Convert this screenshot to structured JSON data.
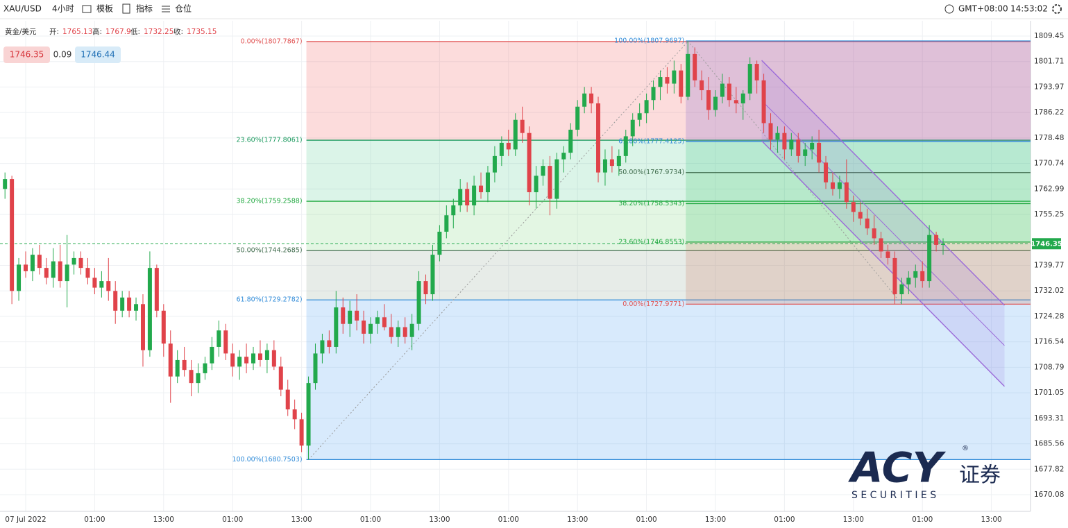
{
  "toolbar": {
    "symbol": "XAU/USD",
    "interval": "4小时",
    "template": "模板",
    "indicators": "指标",
    "positions": "仓位",
    "timezone": "GMT+08:00",
    "clock": "14:53:02"
  },
  "legend": {
    "name": "黄金/美元",
    "open_label": "开:",
    "open": 1765.13,
    "high_label": "高:",
    "high": 1767.9,
    "low_label": "低:",
    "low": 1732.25,
    "close_label": "收:",
    "close": 1735.15
  },
  "quote": {
    "sell": 1746.35,
    "spread": 0.09,
    "buy": 1746.44
  },
  "watermark": {
    "brand": "ACY",
    "mark": "®",
    "cn": "证券",
    "sub": "S E C U R I T I E S"
  },
  "chart_data": {
    "type": "candlestick",
    "categories": [
      null,
      null,
      null,
      "07 Jul 2022",
      null,
      null,
      null,
      null,
      null,
      null,
      null,
      null,
      null,
      "01:00",
      null,
      null,
      null,
      null,
      null,
      null,
      null,
      null,
      null,
      "13:00",
      null,
      null,
      null,
      null,
      null,
      null,
      null,
      null,
      null,
      "01:00",
      null,
      null,
      null,
      null,
      null,
      null,
      null,
      null,
      null,
      "13:00",
      null,
      null,
      null,
      null,
      null,
      null,
      null,
      null,
      null,
      "01:00",
      null,
      null,
      null,
      null,
      null,
      null,
      null,
      null,
      null,
      "13:00",
      null,
      null,
      null,
      null,
      null,
      null,
      null,
      null,
      null,
      "01:00",
      null,
      null,
      null,
      null,
      null,
      null,
      null,
      null,
      null,
      "13:00",
      null,
      null,
      null,
      null,
      null,
      null,
      null,
      null,
      null,
      "01:00",
      null,
      null,
      null,
      null,
      null,
      null,
      null,
      null,
      null,
      "13:00",
      null,
      null,
      null,
      null,
      null,
      null,
      null,
      null,
      null,
      "01:00",
      null,
      null,
      null,
      null,
      null,
      null,
      null,
      null,
      null,
      "13:00",
      null,
      null,
      null,
      null,
      null,
      null,
      null,
      null,
      null,
      "01:00",
      null,
      null,
      null,
      null,
      null,
      null,
      null,
      null,
      null,
      "13:00"
    ],
    "candles": [
      [
        1763,
        1768,
        1760,
        1766
      ],
      [
        1766,
        1767,
        1728,
        1732
      ],
      [
        1732,
        1742,
        1729,
        1740
      ],
      [
        1740,
        1744,
        1736,
        1738
      ],
      [
        1738,
        1745,
        1735,
        1743
      ],
      [
        1743,
        1746,
        1737,
        1739
      ],
      [
        1739,
        1742,
        1734,
        1736
      ],
      [
        1736,
        1745,
        1733,
        1741
      ],
      [
        1741,
        1746,
        1733,
        1735
      ],
      [
        1735,
        1749,
        1727,
        1740
      ],
      [
        1740,
        1744,
        1737,
        1742
      ],
      [
        1742,
        1744,
        1737,
        1739
      ],
      [
        1739,
        1742,
        1734,
        1736
      ],
      [
        1736,
        1739,
        1731,
        1733
      ],
      [
        1733,
        1738,
        1730,
        1735
      ],
      [
        1735,
        1742,
        1729,
        1732
      ],
      [
        1732,
        1735,
        1722,
        1726
      ],
      [
        1726,
        1732,
        1724,
        1730
      ],
      [
        1730,
        1732,
        1724,
        1726
      ],
      [
        1726,
        1730,
        1723,
        1728
      ],
      [
        1728,
        1731,
        1709,
        1714
      ],
      [
        1714,
        1744,
        1712,
        1739
      ],
      [
        1739,
        1740,
        1724,
        1726
      ],
      [
        1726,
        1728,
        1712,
        1716
      ],
      [
        1716,
        1720,
        1698,
        1706
      ],
      [
        1706,
        1714,
        1704,
        1711
      ],
      [
        1711,
        1715,
        1706,
        1708
      ],
      [
        1708,
        1711,
        1700,
        1704
      ],
      [
        1704,
        1710,
        1701,
        1707
      ],
      [
        1707,
        1712,
        1705,
        1710
      ],
      [
        1710,
        1718,
        1708,
        1715
      ],
      [
        1715,
        1723,
        1712,
        1720
      ],
      [
        1720,
        1722,
        1711,
        1713
      ],
      [
        1713,
        1716,
        1706,
        1709
      ],
      [
        1709,
        1714,
        1705,
        1712
      ],
      [
        1712,
        1716,
        1707,
        1710
      ],
      [
        1710,
        1715,
        1708,
        1713
      ],
      [
        1713,
        1717,
        1709,
        1711
      ],
      [
        1711,
        1716,
        1707,
        1714
      ],
      [
        1714,
        1717,
        1708,
        1709
      ],
      [
        1709,
        1712,
        1700,
        1702
      ],
      [
        1702,
        1705,
        1694,
        1696
      ],
      [
        1696,
        1699,
        1690,
        1693
      ],
      [
        1693,
        1695,
        1683,
        1685
      ],
      [
        1685,
        1706,
        1680.75,
        1704
      ],
      [
        1704,
        1716,
        1702,
        1713
      ],
      [
        1713,
        1719,
        1710,
        1717
      ],
      [
        1717,
        1720,
        1713,
        1715
      ],
      [
        1715,
        1732,
        1713,
        1727
      ],
      [
        1727,
        1730,
        1719,
        1722
      ],
      [
        1722,
        1729,
        1718,
        1726
      ],
      [
        1726,
        1731,
        1720,
        1723
      ],
      [
        1723,
        1726,
        1716,
        1719
      ],
      [
        1719,
        1724,
        1716,
        1722
      ],
      [
        1722,
        1726,
        1719,
        1724
      ],
      [
        1724,
        1728,
        1720,
        1721
      ],
      [
        1721,
        1725,
        1716,
        1718
      ],
      [
        1718,
        1723,
        1715,
        1721
      ],
      [
        1721,
        1724,
        1716,
        1718
      ],
      [
        1718,
        1725,
        1714,
        1722
      ],
      [
        1722,
        1738,
        1720,
        1735
      ],
      [
        1735,
        1737,
        1728,
        1731
      ],
      [
        1731,
        1746,
        1729,
        1743
      ],
      [
        1743,
        1752,
        1741,
        1750
      ],
      [
        1750,
        1758,
        1748,
        1755
      ],
      [
        1755,
        1760,
        1751,
        1758
      ],
      [
        1758,
        1766,
        1756,
        1763
      ],
      [
        1763,
        1765,
        1756,
        1758
      ],
      [
        1758,
        1767,
        1755,
        1764
      ],
      [
        1764,
        1768,
        1760,
        1762
      ],
      [
        1762,
        1770,
        1759,
        1768
      ],
      [
        1768,
        1776,
        1765,
        1773
      ],
      [
        1773,
        1779,
        1770,
        1777
      ],
      [
        1777,
        1781,
        1773,
        1775
      ],
      [
        1775,
        1786,
        1773,
        1784
      ],
      [
        1784,
        1788,
        1777,
        1780
      ],
      [
        1780,
        1782,
        1758,
        1762
      ],
      [
        1762,
        1770,
        1757,
        1767
      ],
      [
        1767,
        1772,
        1764,
        1770
      ],
      [
        1770,
        1773,
        1755,
        1760
      ],
      [
        1760,
        1774,
        1757,
        1772
      ],
      [
        1772,
        1776,
        1768,
        1774
      ],
      [
        1774,
        1783,
        1772,
        1781
      ],
      [
        1781,
        1790,
        1779,
        1788
      ],
      [
        1788,
        1794,
        1786,
        1792
      ],
      [
        1792,
        1794,
        1786,
        1789
      ],
      [
        1789,
        1791,
        1765,
        1768
      ],
      [
        1768,
        1775,
        1764,
        1772
      ],
      [
        1772,
        1776,
        1768,
        1770
      ],
      [
        1770,
        1775,
        1767,
        1773
      ],
      [
        1773,
        1781,
        1771,
        1779
      ],
      [
        1779,
        1786,
        1776,
        1784
      ],
      [
        1784,
        1789,
        1782,
        1786
      ],
      [
        1786,
        1792,
        1783,
        1790
      ],
      [
        1790,
        1796,
        1787,
        1794
      ],
      [
        1794,
        1799,
        1790,
        1797
      ],
      [
        1797,
        1800,
        1792,
        1795
      ],
      [
        1795,
        1802,
        1792,
        1799
      ],
      [
        1799,
        1801,
        1789,
        1791
      ],
      [
        1791,
        1807.97,
        1790,
        1804
      ],
      [
        1804,
        1806,
        1794,
        1796
      ],
      [
        1796,
        1799,
        1790,
        1793
      ],
      [
        1793,
        1797,
        1784,
        1787
      ],
      [
        1787,
        1793,
        1785,
        1791
      ],
      [
        1791,
        1798,
        1789,
        1795
      ],
      [
        1795,
        1797,
        1788,
        1790
      ],
      [
        1790,
        1794,
        1786,
        1789
      ],
      [
        1789,
        1793,
        1784,
        1792
      ],
      [
        1792,
        1803,
        1790,
        1801
      ],
      [
        1801,
        1802,
        1792,
        1796
      ],
      [
        1796,
        1798,
        1780,
        1783
      ],
      [
        1783,
        1786,
        1775,
        1778
      ],
      [
        1778,
        1782,
        1774,
        1780
      ],
      [
        1780,
        1782,
        1772,
        1775
      ],
      [
        1775,
        1780,
        1773,
        1778
      ],
      [
        1778,
        1780,
        1771,
        1773
      ],
      [
        1773,
        1777,
        1770,
        1775
      ],
      [
        1775,
        1779,
        1772,
        1777
      ],
      [
        1777,
        1781,
        1768,
        1771
      ],
      [
        1771,
        1773,
        1763,
        1765
      ],
      [
        1765,
        1768,
        1761,
        1763
      ],
      [
        1763,
        1767,
        1760,
        1765
      ],
      [
        1765,
        1772,
        1757,
        1759
      ],
      [
        1759,
        1761,
        1753,
        1756
      ],
      [
        1756,
        1759,
        1752,
        1754
      ],
      [
        1754,
        1757,
        1749,
        1751
      ],
      [
        1751,
        1755,
        1746,
        1748
      ],
      [
        1748,
        1750,
        1742,
        1744
      ],
      [
        1744,
        1746,
        1740,
        1742
      ],
      [
        1742,
        1744,
        1728,
        1731
      ],
      [
        1731,
        1736,
        1727.98,
        1734
      ],
      [
        1734,
        1738,
        1731,
        1736
      ],
      [
        1736,
        1740,
        1733,
        1738
      ],
      [
        1738,
        1741,
        1733,
        1735
      ],
      [
        1735,
        1752,
        1733,
        1749
      ],
      [
        1749,
        1750,
        1744,
        1746
      ],
      [
        1746,
        1748,
        1743,
        1746.35
      ],
      null,
      null,
      null,
      null,
      null,
      null,
      null
    ],
    "up_color": "#22a94c",
    "down_color": "#e0434a",
    "ylim": [
      1665.02,
      1814.09
    ],
    "yticks": [
      1670.08,
      1677.82,
      1685.56,
      1693.31,
      1701.05,
      1708.79,
      1716.54,
      1724.28,
      1732.02,
      1739.77,
      1755.25,
      1762.99,
      1770.74,
      1778.48,
      1786.22,
      1793.97,
      1801.71,
      1809.45
    ],
    "grid": true,
    "last_price_color": "#22a94c",
    "fibs": [
      {
        "anchor_indices": [
          44,
          99
        ],
        "label_side": "left",
        "levels": [
          {
            "label": "0.00%(1807.7867)",
            "price": 1807.7867,
            "color": "#e05252",
            "fill": "rgba(240,80,80,0.2)"
          },
          {
            "label": "23.60%(1777.8061)",
            "price": 1777.8061,
            "color": "#1a9a5e",
            "fill": "rgba(40,190,120,0.17)"
          },
          {
            "label": "38.20%(1759.2588)",
            "price": 1759.2588,
            "color": "#1fa83f",
            "fill": "rgba(90,200,90,0.17)"
          },
          {
            "label": "50.00%(1744.2685)",
            "price": 1744.2685,
            "color": "#3f6b4c",
            "fill": "rgba(110,140,120,0.17)"
          },
          {
            "label": "61.80%(1729.2782)",
            "price": 1729.2782,
            "color": "#2e8ad8",
            "fill": "rgba(60,150,240,0.2)"
          },
          {
            "label": "100.00%(1680.7503)",
            "price": 1680.7503,
            "color": "#2e8ad8",
            "fill": null
          }
        ]
      },
      {
        "anchor_indices": [
          99,
          130
        ],
        "label_side": "right",
        "levels": [
          {
            "label": "100.00%(1807.9697)",
            "price": 1807.9697,
            "color": "#2e8ad8",
            "fill": "rgba(110,80,200,0.2)"
          },
          {
            "label": "61.80%(1777.4125)",
            "price": 1777.4125,
            "color": "#2e8ad8",
            "fill": "rgba(40,190,120,0.2)"
          },
          {
            "label": "50.00%(1767.9734)",
            "price": 1767.9734,
            "color": "#3f6b4c",
            "fill": "rgba(40,190,90,0.2)"
          },
          {
            "label": "38.20%(1758.5343)",
            "price": 1758.5343,
            "color": "#1fa83f",
            "fill": "rgba(40,190,90,0.2)"
          },
          {
            "label": "23.60%(1746.8553)",
            "price": 1746.8553,
            "color": "#1fa83f",
            "fill": "rgba(200,110,80,0.2)"
          },
          {
            "label": "0.00%(1727.9771)",
            "price": 1727.9771,
            "color": "#e05252",
            "fill": null
          }
        ]
      }
    ],
    "channel": {
      "x": [
        109.7,
        144.9
      ],
      "upper": [
        1802.07,
        1727.65
      ],
      "middle": [
        1789.84,
        1715.41
      ],
      "lower": [
        1777.61,
        1703.01
      ],
      "color": "#9b6ad9"
    }
  }
}
